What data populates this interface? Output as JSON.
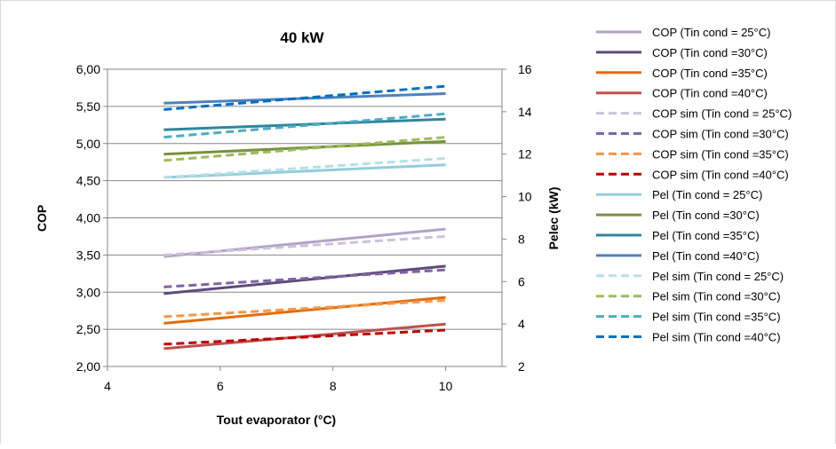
{
  "chart_data": {
    "type": "line",
    "title": "40 kW",
    "xlabel": "Tout evaporator (°C)",
    "ylabel": "COP",
    "y2label": "Pelec (kW)",
    "xlim": [
      4,
      11
    ],
    "ylim": [
      2.0,
      6.0
    ],
    "y2lim": [
      2,
      16
    ],
    "xticks": [
      "4",
      "6",
      "8",
      "10"
    ],
    "yticks": [
      "2,00",
      "2,50",
      "3,00",
      "3,50",
      "4,00",
      "4,50",
      "5,00",
      "5,50",
      "6,00"
    ],
    "y2ticks": [
      "2",
      "4",
      "6",
      "8",
      "10",
      "12",
      "14",
      "16"
    ],
    "grid": "horizontal",
    "legend_position": "right",
    "series": [
      {
        "name": "COP  (Tin cond = 25°C)",
        "axis": "left",
        "dashed": false,
        "color": "#b3a2c7",
        "x": [
          5,
          10
        ],
        "y": [
          3.48,
          3.85
        ]
      },
      {
        "name": "COP  (Tin cond =30°C)",
        "axis": "left",
        "dashed": false,
        "color": "#604a7b",
        "x": [
          5,
          10
        ],
        "y": [
          2.98,
          3.35
        ]
      },
      {
        "name": "COP  (Tin cond =35°C)",
        "axis": "left",
        "dashed": false,
        "color": "#e46c0a",
        "x": [
          5,
          10
        ],
        "y": [
          2.58,
          2.93
        ]
      },
      {
        "name": "COP  (Tin cond =40°C)",
        "axis": "left",
        "dashed": false,
        "color": "#c0504d",
        "x": [
          5,
          10
        ],
        "y": [
          2.24,
          2.57
        ]
      },
      {
        "name": "COP sim  (Tin cond = 25°C)",
        "axis": "left",
        "dashed": true,
        "color": "#ccc1da",
        "x": [
          5,
          10
        ],
        "y": [
          3.5,
          3.75
        ]
      },
      {
        "name": "COP sim  (Tin cond =30°C)",
        "axis": "left",
        "dashed": true,
        "color": "#8064a2",
        "x": [
          5,
          10
        ],
        "y": [
          3.07,
          3.3
        ]
      },
      {
        "name": "COP sim  (Tin cond =35°C)",
        "axis": "left",
        "dashed": true,
        "color": "#f79646",
        "x": [
          5,
          10
        ],
        "y": [
          2.67,
          2.89
        ]
      },
      {
        "name": "COP sim  (Tin cond =40°C)",
        "axis": "left",
        "dashed": true,
        "color": "#c00000",
        "x": [
          5,
          10
        ],
        "y": [
          2.3,
          2.49
        ]
      },
      {
        "name": "Pel (Tin cond = 25°C)",
        "axis": "right",
        "dashed": false,
        "color": "#92cddc",
        "x": [
          5,
          10
        ],
        "y": [
          10.9,
          11.5
        ]
      },
      {
        "name": "Pel  (Tin cond =30°C)",
        "axis": "right",
        "dashed": false,
        "color": "#77933c",
        "x": [
          5,
          10
        ],
        "y": [
          12.0,
          12.6
        ]
      },
      {
        "name": "Pel  (Tin cond =35°C)",
        "axis": "right",
        "dashed": false,
        "color": "#31859c",
        "x": [
          5,
          10
        ],
        "y": [
          13.15,
          13.65
        ]
      },
      {
        "name": "Pel  (Tin cond =40°C)",
        "axis": "right",
        "dashed": false,
        "color": "#4f81bd",
        "x": [
          5,
          10
        ],
        "y": [
          14.4,
          14.85
        ]
      },
      {
        "name": "Pel sim  (Tin cond = 25°C)",
        "axis": "right",
        "dashed": true,
        "color": "#b7dee8",
        "x": [
          5,
          10
        ],
        "y": [
          10.9,
          11.8
        ]
      },
      {
        "name": "Pel sim  (Tin cond =30°C)",
        "axis": "right",
        "dashed": true,
        "color": "#9bbb59",
        "x": [
          5,
          10
        ],
        "y": [
          11.7,
          12.8
        ]
      },
      {
        "name": "Pel sim  (Tin cond =35°C)",
        "axis": "right",
        "dashed": true,
        "color": "#4bacc6",
        "x": [
          5,
          10
        ],
        "y": [
          12.8,
          13.9
        ]
      },
      {
        "name": "Pel sim  (Tin cond =40°C)",
        "axis": "right",
        "dashed": true,
        "color": "#0070c0",
        "x": [
          5,
          10
        ],
        "y": [
          14.1,
          15.2
        ]
      }
    ]
  }
}
